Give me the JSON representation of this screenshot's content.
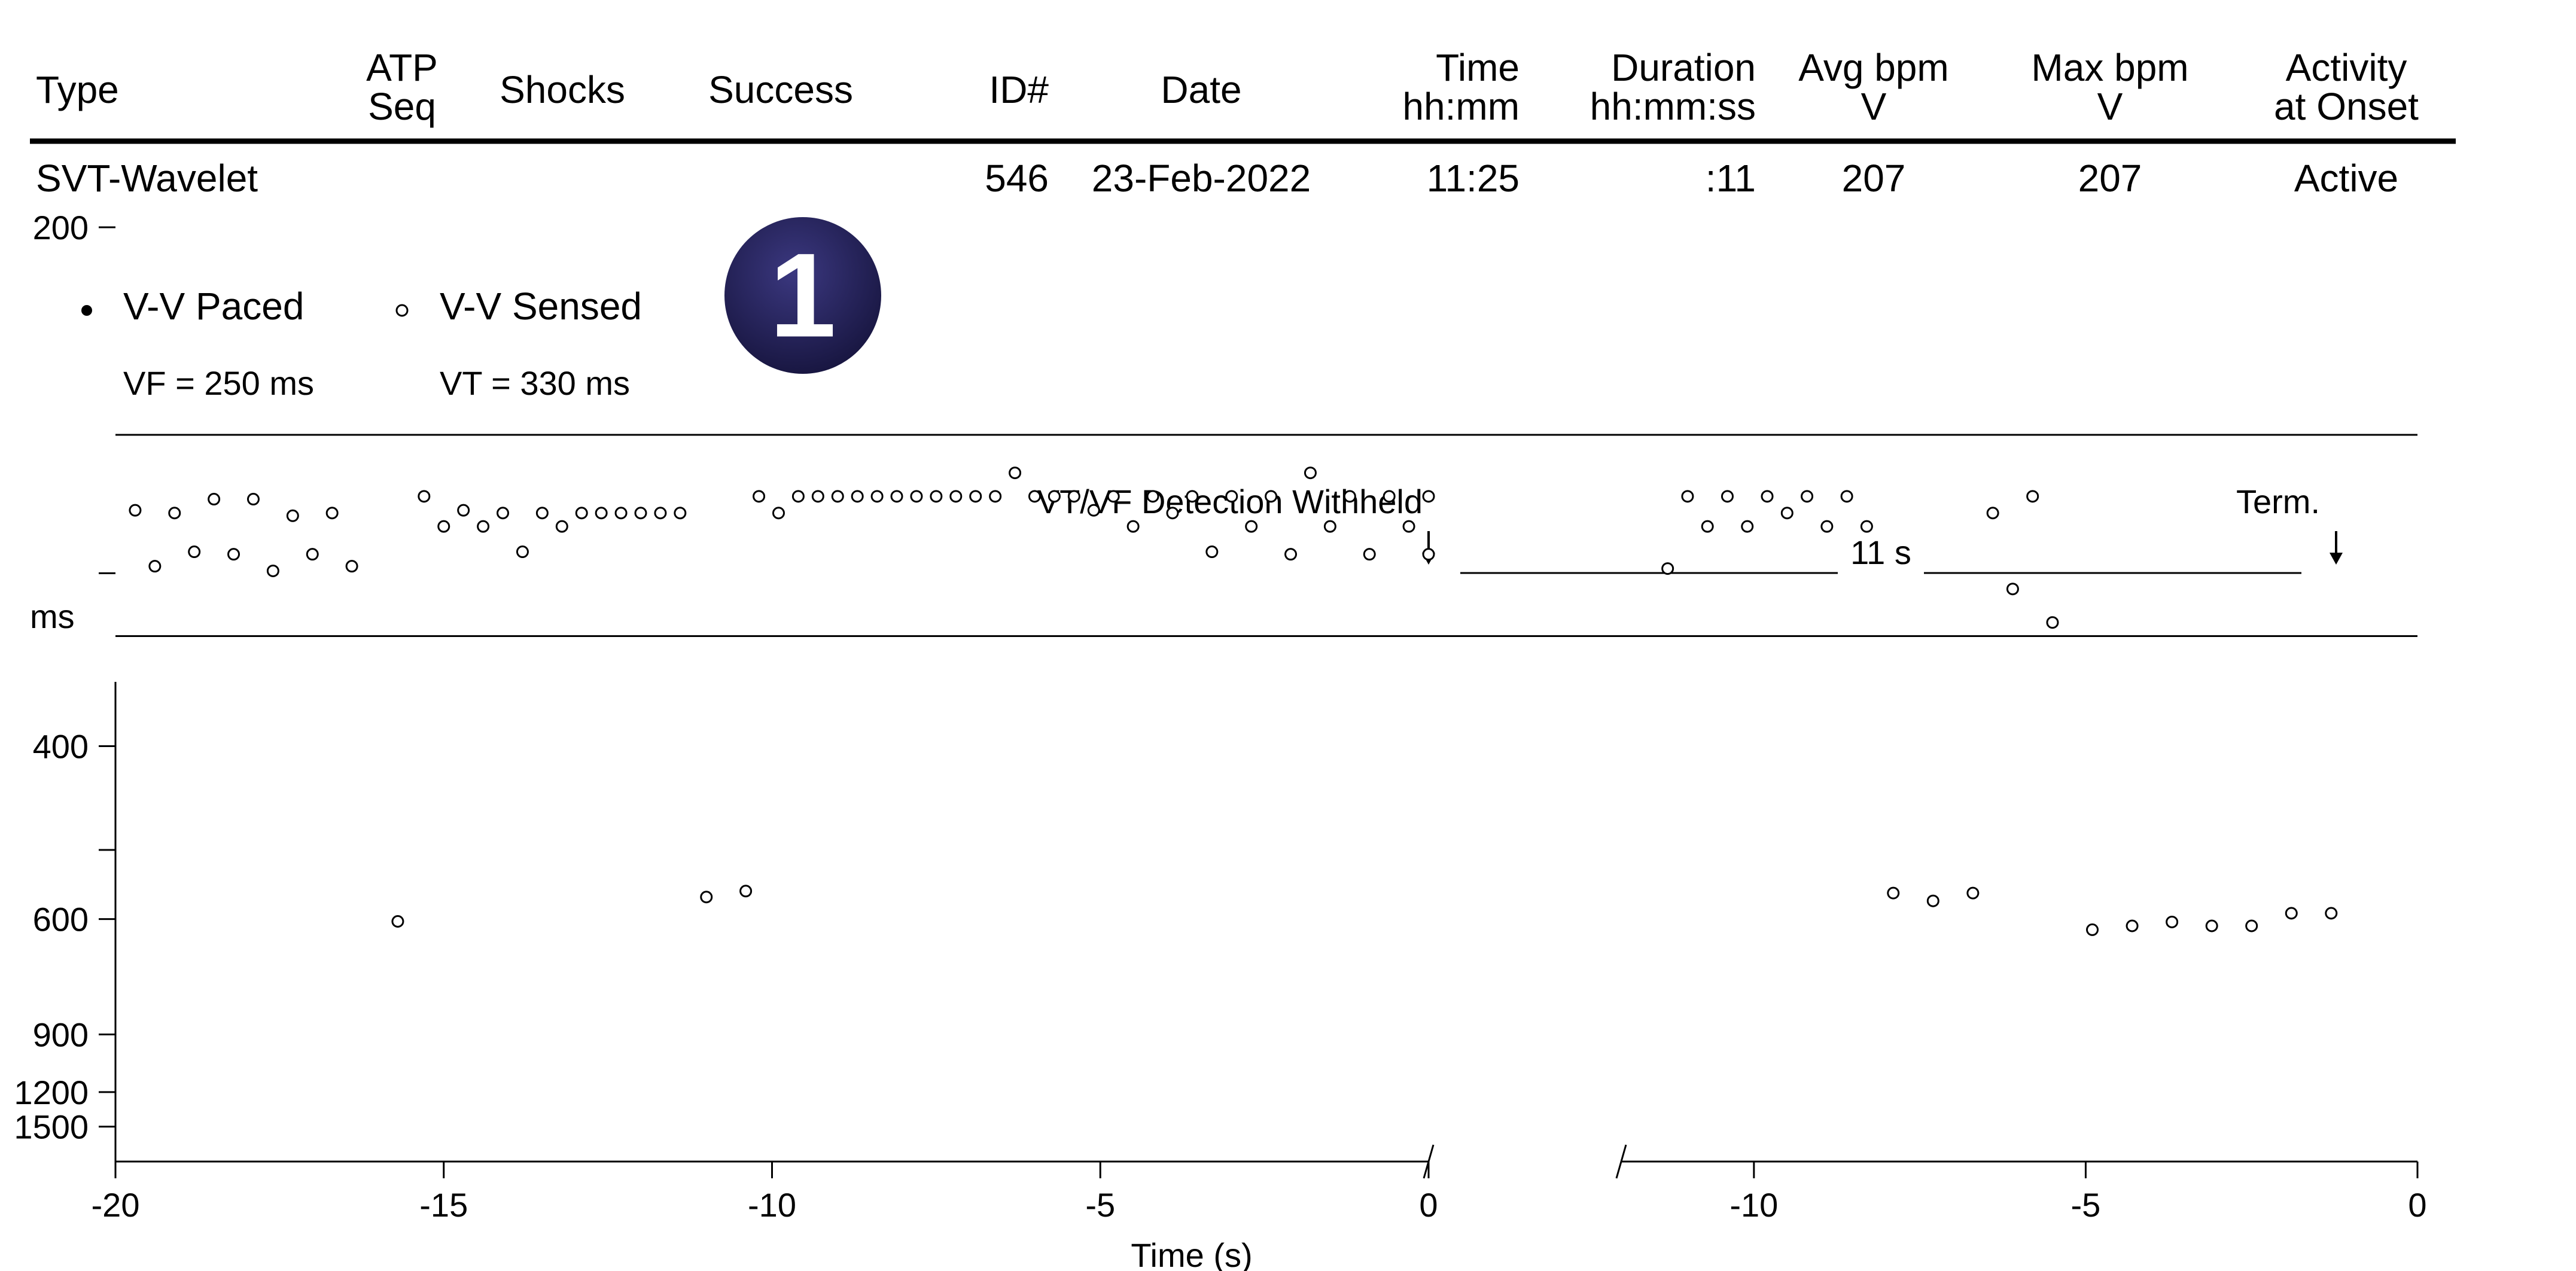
{
  "header": {
    "columns": [
      {
        "key": "type",
        "lines": [
          "Type"
        ]
      },
      {
        "key": "atp",
        "lines": [
          "ATP",
          "Seq"
        ]
      },
      {
        "key": "shocks",
        "lines": [
          "Shocks"
        ]
      },
      {
        "key": "success",
        "lines": [
          "Success"
        ]
      },
      {
        "key": "id",
        "lines": [
          "ID#"
        ]
      },
      {
        "key": "date",
        "lines": [
          "Date"
        ]
      },
      {
        "key": "time",
        "lines": [
          "Time",
          "hh:mm"
        ]
      },
      {
        "key": "duration",
        "lines": [
          "Duration",
          "hh:mm:ss"
        ]
      },
      {
        "key": "avg",
        "lines": [
          "Avg bpm",
          "V"
        ]
      },
      {
        "key": "max",
        "lines": [
          "Max bpm",
          "V"
        ]
      },
      {
        "key": "activity",
        "lines": [
          "Activity",
          "at Onset"
        ]
      }
    ],
    "row": {
      "type": "SVT-Wavelet",
      "atp": "",
      "shocks": "",
      "success": "",
      "id": "546",
      "date": "23-Feb-2022",
      "time": "11:25",
      "duration": ":11",
      "avg": "207",
      "max": "207",
      "activity": "Active"
    }
  },
  "badge": {
    "label": "1",
    "color": "#1e1b4f"
  },
  "legend": {
    "paced_label": "V-V Paced",
    "sensed_label": "V-V Sensed",
    "vf_label": "VF = 250 ms",
    "vt_label": "VT = 330 ms"
  },
  "annotations": {
    "withheld": "VT/VF Detection Withheld",
    "duration": "11 s",
    "term": "Term."
  },
  "chart_data": {
    "type": "scatter",
    "ylabel": "ms",
    "xlabel": "Time (s)",
    "y_scale": "reciprocal",
    "y_ticks": [
      "1500",
      "1200",
      "900",
      "600",
      "",
      "400",
      "",
      "200",
      ""
    ],
    "y_tick_values": [
      1500,
      1200,
      900,
      600,
      500,
      400,
      300,
      200,
      150
    ],
    "vt_threshold_ms": 330,
    "vf_threshold_ms": 250,
    "panels": [
      {
        "name": "onset",
        "xlim": [
          -20,
          0
        ],
        "x_ticks": [
          "-20",
          "-15",
          "-10",
          "-5",
          "0"
        ],
        "x_tick_values": [
          -20,
          -15,
          -10,
          -5,
          0
        ],
        "points": [
          [
            -19.7,
            275
          ],
          [
            -19.4,
            297
          ],
          [
            -19.1,
            276
          ],
          [
            -18.8,
            291
          ],
          [
            -18.5,
            271
          ],
          [
            -18.2,
            292
          ],
          [
            -17.9,
            271
          ],
          [
            -17.6,
            299
          ],
          [
            -17.3,
            277
          ],
          [
            -17.0,
            292
          ],
          [
            -16.7,
            276
          ],
          [
            -16.4,
            297
          ],
          [
            -15.7,
            604
          ],
          [
            -15.3,
            270
          ],
          [
            -15.0,
            281
          ],
          [
            -14.7,
            275
          ],
          [
            -14.4,
            281
          ],
          [
            -14.1,
            276
          ],
          [
            -13.8,
            291
          ],
          [
            -13.5,
            276
          ],
          [
            -13.2,
            281
          ],
          [
            -12.9,
            276
          ],
          [
            -12.6,
            276
          ],
          [
            -12.3,
            276
          ],
          [
            -12.0,
            276
          ],
          [
            -11.7,
            276
          ],
          [
            -11.4,
            276
          ],
          [
            -11.0,
            564
          ],
          [
            -10.4,
            555
          ],
          [
            -10.2,
            270
          ],
          [
            -9.9,
            276
          ],
          [
            -9.6,
            270
          ],
          [
            -9.3,
            270
          ],
          [
            -9.0,
            270
          ],
          [
            -8.7,
            270
          ],
          [
            -8.4,
            270
          ],
          [
            -8.1,
            270
          ],
          [
            -7.8,
            270
          ],
          [
            -7.5,
            270
          ],
          [
            -7.2,
            270
          ],
          [
            -6.9,
            270
          ],
          [
            -6.6,
            270
          ],
          [
            -6.3,
            262
          ],
          [
            -6.0,
            270
          ],
          [
            -5.7,
            270
          ],
          [
            -5.4,
            270
          ],
          [
            -5.1,
            275
          ],
          [
            -4.8,
            270
          ],
          [
            -4.5,
            281
          ],
          [
            -4.2,
            270
          ],
          [
            -3.9,
            276
          ],
          [
            -3.6,
            270
          ],
          [
            -3.3,
            291
          ],
          [
            -3.0,
            270
          ],
          [
            -2.7,
            281
          ],
          [
            -2.4,
            270
          ],
          [
            -2.1,
            292
          ],
          [
            -1.8,
            262
          ],
          [
            -1.5,
            281
          ],
          [
            -1.2,
            270
          ],
          [
            -0.9,
            292
          ],
          [
            -0.6,
            270
          ],
          [
            -0.3,
            281
          ],
          [
            0.0,
            270
          ],
          [
            0.0,
            292
          ]
        ]
      },
      {
        "name": "termination",
        "xlim": [
          -12,
          0
        ],
        "x_ticks": [
          "-10",
          "-5",
          "0"
        ],
        "x_tick_values": [
          -10,
          -5,
          0
        ],
        "points": [
          [
            -11.3,
            298
          ],
          [
            -11.0,
            270
          ],
          [
            -10.7,
            281
          ],
          [
            -10.4,
            270
          ],
          [
            -10.1,
            281
          ],
          [
            -9.8,
            270
          ],
          [
            -9.5,
            276
          ],
          [
            -9.2,
            270
          ],
          [
            -8.9,
            281
          ],
          [
            -8.6,
            270
          ],
          [
            -8.3,
            281
          ],
          [
            -7.9,
            558
          ],
          [
            -7.3,
            570
          ],
          [
            -6.7,
            558
          ],
          [
            -6.4,
            276
          ],
          [
            -6.1,
            307
          ],
          [
            -5.8,
            270
          ],
          [
            -5.5,
            323
          ],
          [
            -4.9,
            619
          ],
          [
            -4.3,
            612
          ],
          [
            -3.7,
            605
          ],
          [
            -3.1,
            612
          ],
          [
            -2.5,
            612
          ],
          [
            -1.9,
            590
          ],
          [
            -1.3,
            590
          ]
        ]
      }
    ]
  }
}
